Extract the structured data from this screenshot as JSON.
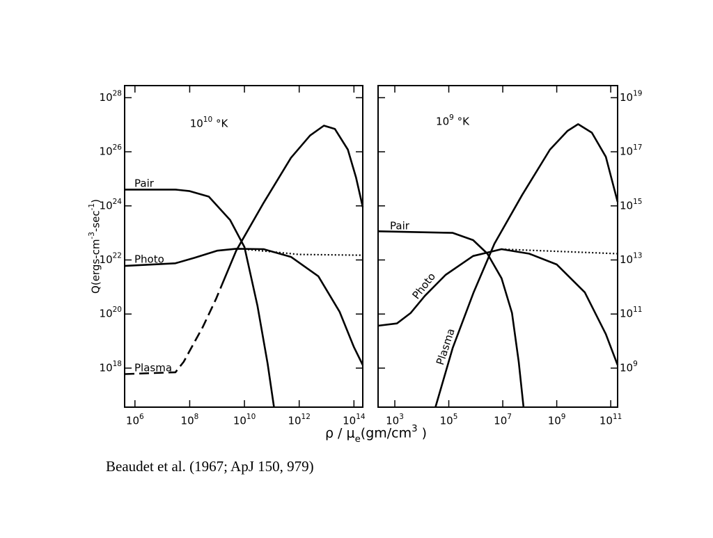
{
  "ylabel": "Q(ergs-cm^-3-sec^-1)",
  "xlabel": "ρ / μ_e(gm/cm^3 )",
  "caption": "Beaudet et al. (1967; ApJ 150, 979)",
  "chart_data": [
    {
      "type": "line",
      "annotation": "10^10 °K",
      "log_scale": true,
      "yaxis_side": "left",
      "xlim": [
        420000.0,
        210000000000000.0
      ],
      "ylim": [
        3.6e+16,
        2.8e+28
      ],
      "xticks": [
        {
          "value": 1000000.0,
          "label": "10^6"
        },
        {
          "value": 100000000.0,
          "label": "10^8"
        },
        {
          "value": 10000000000.0,
          "label": "10^10"
        },
        {
          "value": 1000000000000.0,
          "label": "10^12"
        },
        {
          "value": 100000000000000.0,
          "label": "10^14"
        }
      ],
      "yticks": [
        {
          "value": 1e+18,
          "label": "10^18"
        },
        {
          "value": 1e+20,
          "label": "10^20"
        },
        {
          "value": 1e+22,
          "label": "10^22"
        },
        {
          "value": 1e+24,
          "label": "10^24"
        },
        {
          "value": 1e+26,
          "label": "10^26"
        },
        {
          "value": 1e+28,
          "label": "10^28"
        }
      ],
      "series": [
        {
          "name": "Pair",
          "color": "#000000",
          "style": "solid",
          "x": [
            420000.0,
            30000000.0,
            100000000.0,
            500000000.0,
            3000000000.0,
            10000000000.0,
            30000000000.0,
            70000000000.0,
            120000000000.0
          ],
          "values": [
            4e+24,
            4e+24,
            3.5e+24,
            2.2e+24,
            3e+23,
            3e+22,
            2e+20,
            1.5e+18,
            3.6e+16
          ]
        },
        {
          "name": "Photo",
          "color": "#000000",
          "style": "solid",
          "x": [
            420000.0,
            30000000.0,
            150000000.0,
            1000000000.0,
            5000000000.0,
            50000000000.0,
            500000000000.0,
            5000000000000.0,
            30000000000000.0,
            100000000000000.0,
            210000000000000.0
          ],
          "values": [
            6e+21,
            7.5e+21,
            1.2e+22,
            2.2e+22,
            2.6e+22,
            2.5e+22,
            1.3e+22,
            2.5e+21,
            1.2e+20,
            6e+18,
            1.3e+18
          ]
        },
        {
          "color": "#000000",
          "style": "dotted",
          "x": [
            10000000000.0,
            1000000000000.0,
            210000000000000.0
          ],
          "values": [
            2.5e+22,
            1.6e+22,
            1.5e+22
          ]
        },
        {
          "name": "Plasma",
          "color": "#000000",
          "style": "dashed",
          "x": [
            420000.0,
            30000000.0,
            60000000.0,
            300000000.0,
            900000000.0,
            1500000000.0
          ],
          "values": [
            6e+17,
            7e+17,
            1.7e+18,
            3.3e+19,
            3.5e+20,
            1.2e+21
          ]
        },
        {
          "color": "#000000",
          "style": "solid",
          "x": [
            1500000000.0,
            5000000000.0,
            50000000000.0,
            500000000000.0,
            2500000000000.0,
            8000000000000.0,
            20000000000000.0,
            60000000000000.0,
            120000000000000.0,
            210000000000000.0
          ],
          "values": [
            1.2e+21,
            2.2e+22,
            1.3e+24,
            6e+25,
            4e+26,
            9.3e+26,
            7e+26,
            1.2e+26,
            1.1e+25,
            9e+23
          ]
        }
      ]
    },
    {
      "type": "line",
      "annotation": "10^9 °K",
      "log_scale": true,
      "yaxis_side": "right",
      "xlim": [
        240,
        180000000000.0
      ],
      "ylim": [
        36000000.0,
        2.8e+19
      ],
      "xticks": [
        {
          "value": 1000.0,
          "label": "10^3"
        },
        {
          "value": 100000.0,
          "label": "10^5"
        },
        {
          "value": 10000000.0,
          "label": "10^7"
        },
        {
          "value": 1000000000.0,
          "label": "10^9"
        },
        {
          "value": 100000000000.0,
          "label": "10^11"
        }
      ],
      "yticks": [
        {
          "value": 1000000000.0,
          "label": "10^9"
        },
        {
          "value": 100000000000.0,
          "label": "10^11"
        },
        {
          "value": 10000000000000.0,
          "label": "10^13"
        },
        {
          "value": 1000000000000000.0,
          "label": "10^15"
        },
        {
          "value": 1e+17,
          "label": "10^17"
        },
        {
          "value": 1e+19,
          "label": "10^19"
        }
      ],
      "series": [
        {
          "name": "Pair",
          "color": "#000000",
          "style": "solid",
          "x": [
            240,
            140000.0,
            800000.0,
            2700000.0,
            9000000.0,
            22000000.0,
            39000000.0,
            59000000.0
          ],
          "values": [
            115000000000000.0,
            100000000000000.0,
            54000000000000.0,
            17000000000000.0,
            2100000000000.0,
            110000000000.0,
            1700000000.0,
            36000000.0
          ]
        },
        {
          "name": "Photo",
          "color": "#000000",
          "style": "solid",
          "x": [
            240,
            1200.0,
            3900.0,
            13000.0,
            76000.0,
            800000.0,
            9000000.0,
            95000000.0,
            1000000000.0,
            11000000000.0,
            66000000000.0,
            180000000000.0
          ],
          "values": [
            37000000000.0,
            45000000000.0,
            110000000000.0,
            470000000000.0,
            2800000000000.0,
            14000000000000.0,
            25000000000000.0,
            17000000000000.0,
            6800000000000.0,
            630000000000.0,
            18000000000.0,
            1300000000.0
          ]
        },
        {
          "color": "#000000",
          "style": "dotted",
          "x": [
            9000000.0,
            180000000000.0
          ],
          "values": [
            25000000000000.0,
            17000000000000.0
          ]
        },
        {
          "name": "Plasma",
          "color": "#000000",
          "style": "solid",
          "x": [
            32000.0,
            140000.0,
            830000.0,
            4900000.0,
            52000000.0,
            560000000.0,
            2500000000.0,
            6200000000.0,
            20000000000.0,
            66000000000.0,
            180000000000.0
          ],
          "values": [
            36000000.0,
            5600000000.0,
            630000000000.0,
            40000000000000.0,
            2500000000000000.0,
            1.2e+17,
            5.9e+17,
            1.05e+18,
            5.1e+17,
            6.5e+16,
            1400000000000000.0
          ]
        }
      ]
    }
  ]
}
